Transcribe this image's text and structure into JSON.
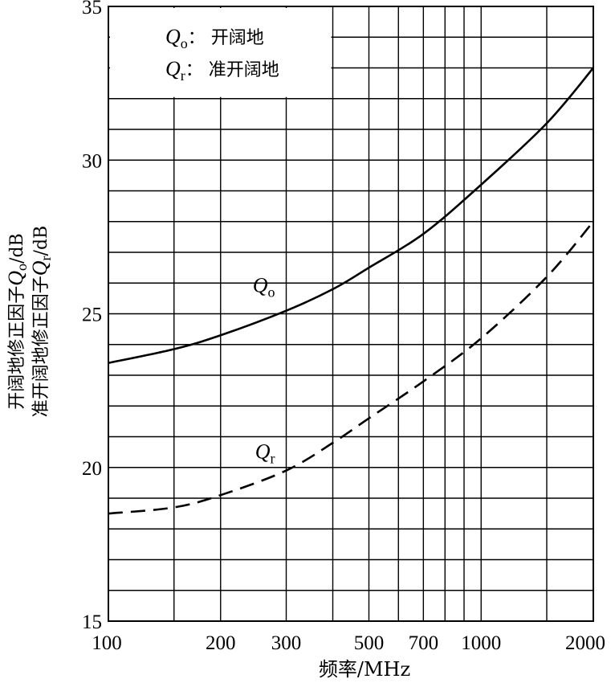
{
  "chart_data": {
    "type": "line",
    "xlabel": "频率/MHz",
    "ylabel_line1": "开阔地修正因子",
    "ylabel_line1_symbol": "Q",
    "ylabel_line1_sub": "o",
    "ylabel_line1_unit": "/dB",
    "ylabel_line2": "准开阔地修正因子",
    "ylabel_line2_symbol": "Q",
    "ylabel_line2_sub": "r",
    "ylabel_line2_unit": "/dB",
    "x_scale": "log",
    "xlim": [
      100,
      2000
    ],
    "ylim": [
      15,
      35
    ],
    "x_ticks": [
      100,
      200,
      300,
      500,
      700,
      1000,
      2000
    ],
    "x_tick_labels": [
      "100",
      "200",
      "300",
      "500",
      "700",
      "1000",
      "2000"
    ],
    "y_ticks": [
      15,
      20,
      25,
      30,
      35
    ],
    "y_tick_labels": [
      "15",
      "20",
      "25",
      "30",
      "35"
    ],
    "x_grid": [
      150,
      200,
      300,
      400,
      500,
      600,
      700,
      800,
      900,
      1000,
      1500
    ],
    "y_grid_step": 1,
    "grid": true,
    "legend": {
      "placement": "top-left",
      "entries": [
        {
          "symbol": "Q",
          "sub": "o",
          "sep": "：",
          "text": "开阔地"
        },
        {
          "symbol": "Q",
          "sub": "r",
          "sep": "：",
          "text": "准开阔地"
        }
      ]
    },
    "series": [
      {
        "name": "Qo",
        "label_symbol": "Q",
        "label_sub": "o",
        "style": "solid",
        "color": "#000000",
        "x": [
          100,
          150,
          200,
          300,
          400,
          500,
          700,
          1000,
          1500,
          2000
        ],
        "y": [
          23.4,
          23.85,
          24.3,
          25.1,
          25.8,
          26.5,
          27.6,
          29.2,
          31.2,
          33.0
        ]
      },
      {
        "name": "Qr",
        "label_symbol": "Q",
        "label_sub": "r",
        "style": "dashed",
        "color": "#000000",
        "x": [
          100,
          150,
          200,
          300,
          400,
          500,
          700,
          1000,
          1500,
          2000
        ],
        "y": [
          18.5,
          18.7,
          19.1,
          19.9,
          20.8,
          21.6,
          22.8,
          24.2,
          26.2,
          28.0
        ]
      }
    ]
  }
}
